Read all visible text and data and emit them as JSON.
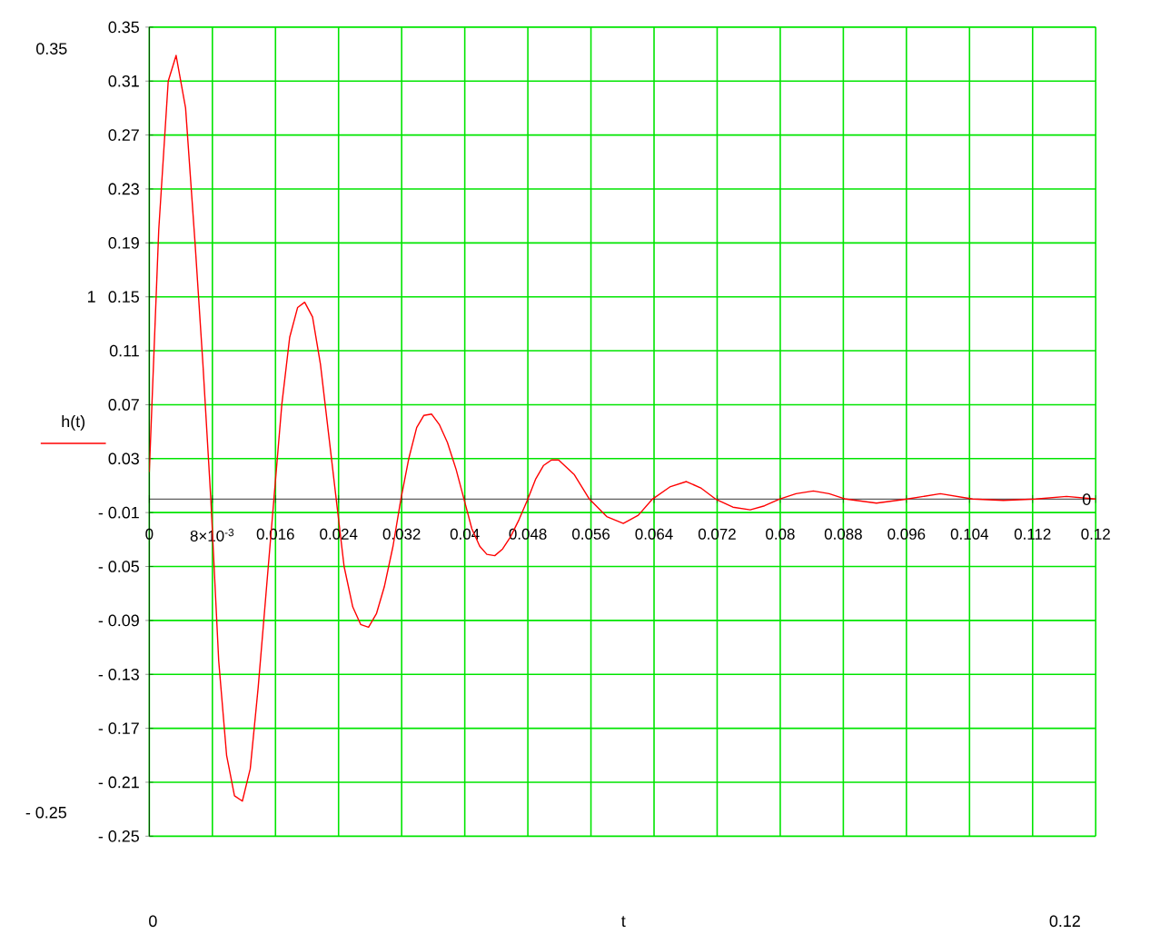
{
  "chart_data": {
    "type": "line",
    "xlabel": "t",
    "x": [
      0,
      0.0012,
      0.0024,
      0.0034,
      0.0046,
      0.0058,
      0.0068,
      0.0078,
      0.0088,
      0.0098,
      0.0108,
      0.0118,
      0.0128,
      0.0138,
      0.0148,
      0.0158,
      0.0168,
      0.0178,
      0.0188,
      0.0197,
      0.0207,
      0.0217,
      0.0227,
      0.0237,
      0.0247,
      0.0258,
      0.0268,
      0.0278,
      0.0288,
      0.0298,
      0.0309,
      0.0319,
      0.0329,
      0.0339,
      0.0348,
      0.0358,
      0.0368,
      0.0378,
      0.0389,
      0.0399,
      0.0409,
      0.0419,
      0.0428,
      0.0438,
      0.0448,
      0.0458,
      0.0469,
      0.048,
      0.049,
      0.05,
      0.051,
      0.0519,
      0.0539,
      0.0558,
      0.058,
      0.0601,
      0.062,
      0.0638,
      0.066,
      0.0681,
      0.07,
      0.0718,
      0.074,
      0.0762,
      0.078,
      0.0799,
      0.082,
      0.0842,
      0.0862,
      0.0883,
      0.0922,
      0.0961,
      0.1003,
      0.1044,
      0.1083,
      0.1124,
      0.1163,
      0.12
    ],
    "series": [
      {
        "name": "h(t)",
        "color": "#ff0000",
        "values": [
          0.02,
          0.2,
          0.31,
          0.329,
          0.29,
          0.19,
          0.1,
          0,
          -0.12,
          -0.19,
          -0.22,
          -0.224,
          -0.2,
          -0.14,
          -0.07,
          0,
          0.07,
          0.12,
          0.142,
          0.146,
          0.135,
          0.1,
          0.05,
          0,
          -0.05,
          -0.08,
          -0.093,
          -0.095,
          -0.085,
          -0.065,
          -0.035,
          0,
          0.03,
          0.053,
          0.062,
          0.063,
          0.055,
          0.042,
          0.022,
          0,
          -0.022,
          -0.035,
          -0.041,
          -0.042,
          -0.037,
          -0.028,
          -0.015,
          0,
          0.015,
          0.025,
          0.029,
          0.029,
          0.018,
          0,
          -0.013,
          -0.018,
          -0.012,
          0,
          0.009,
          0.013,
          0.008,
          0,
          -0.006,
          -0.008,
          -0.005,
          0,
          0.004,
          0.006,
          0.004,
          0,
          -0.003,
          0,
          0.004,
          0,
          -0.001,
          0,
          0.002,
          0
        ]
      }
    ],
    "xlim": [
      0,
      0.12
    ],
    "xticks": [
      0,
      {
        "value": 0.008,
        "label": "8×10$^{-3}$"
      },
      0.016,
      0.024,
      0.032,
      0.04,
      0.048,
      0.056,
      0.064,
      0.072,
      0.08,
      0.088,
      0.096,
      0.104,
      0.112,
      0.12
    ],
    "ylim": [
      -0.25,
      0.35
    ],
    "yticks": [
      {
        "value": -0.25,
        "label": "- 0.25"
      },
      {
        "value": -0.21,
        "label": "- 0.21"
      },
      {
        "value": -0.17,
        "label": "- 0.17"
      },
      {
        "value": -0.13,
        "label": "- 0.13"
      },
      {
        "value": -0.09,
        "label": "- 0.09"
      },
      {
        "value": -0.05,
        "label": "- 0.05"
      },
      {
        "value": -0.01,
        "label": "- 0.01"
      },
      0.03,
      0.07,
      0.11,
      0.15,
      0.19,
      0.23,
      0.27,
      0.31,
      0.35
    ],
    "grid": true,
    "legend": "left",
    "annotations": [
      "0.35",
      "1",
      "- 0.25",
      "0",
      "0",
      "0.12"
    ]
  }
}
